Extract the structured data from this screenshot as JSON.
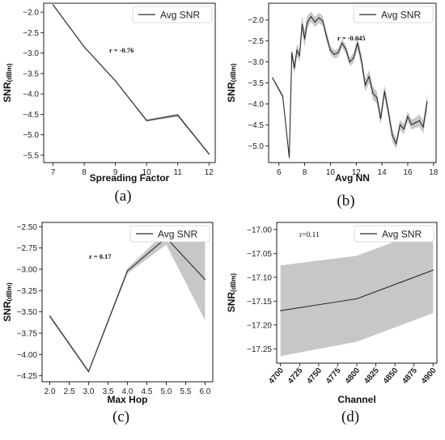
{
  "chart_data": [
    {
      "type": "line",
      "caption": "(a)",
      "xlabel": "Spreading Factor",
      "ylabel": "SNR",
      "ylabel_unit": "(dBm)",
      "legend": {
        "label": "Avg SNR",
        "placement": "top-right"
      },
      "annotation": "r = -0.76",
      "xlim": [
        6.7,
        12.2
      ],
      "ylim": [
        -5.68,
        -1.78
      ],
      "xticks": [
        7,
        8,
        9,
        10,
        11,
        12
      ],
      "yticks": [
        -2.0,
        -2.5,
        -3.0,
        -3.5,
        -4.0,
        -4.5,
        -5.0,
        -5.5
      ],
      "ytick_labels": [
        "−2.0",
        "−2.5",
        "−3.0",
        "−3.5",
        "−4.0",
        "−4.5",
        "−5.0",
        "−5.5"
      ],
      "x": [
        7,
        8,
        9,
        10,
        11,
        12
      ],
      "y": [
        -1.82,
        -2.85,
        -3.68,
        -4.65,
        -4.52,
        -5.47
      ],
      "band": [
        0.02,
        0.02,
        0.02,
        0.03,
        0.04,
        0.03
      ]
    },
    {
      "type": "line",
      "caption": "(b)",
      "xlabel": "Avg NN",
      "ylabel": "SNR",
      "ylabel_unit": "(dBm)",
      "legend": {
        "label": "Avg SNR",
        "placement": "top-right"
      },
      "annotation": "r = -0.045",
      "xlim": [
        5.2,
        18.2
      ],
      "ylim": [
        -5.4,
        -1.6
      ],
      "xticks": [
        6,
        8,
        10,
        12,
        14,
        16,
        18
      ],
      "yticks": [
        -2.0,
        -2.5,
        -3.0,
        -3.5,
        -4.0,
        -4.5,
        -5.0
      ],
      "ytick_labels": [
        "−2.0",
        "−2.5",
        "−3.0",
        "−3.5",
        "−4.0",
        "−4.5",
        "−5.0"
      ],
      "x": [
        5.5,
        6.3,
        6.8,
        7.0,
        7.2,
        7.4,
        7.6,
        7.8,
        8.0,
        8.2,
        8.5,
        8.8,
        9.1,
        9.4,
        9.7,
        10.0,
        10.3,
        10.6,
        10.9,
        11.2,
        11.5,
        11.8,
        12.1,
        12.4,
        12.7,
        13.0,
        13.3,
        13.6,
        13.9,
        14.2,
        14.5,
        14.8,
        15.1,
        15.4,
        15.7,
        16.0,
        16.3,
        16.6,
        16.9,
        17.2,
        17.5
      ],
      "y": [
        -3.38,
        -3.82,
        -5.28,
        -2.78,
        -3.15,
        -2.72,
        -2.85,
        -2.1,
        -2.45,
        -2.05,
        -1.92,
        -2.05,
        -1.95,
        -2.02,
        -2.4,
        -2.72,
        -2.82,
        -2.78,
        -2.55,
        -2.7,
        -3.0,
        -2.9,
        -2.55,
        -2.95,
        -3.55,
        -3.35,
        -3.75,
        -3.85,
        -4.35,
        -3.7,
        -4.2,
        -4.75,
        -4.95,
        -4.5,
        -4.6,
        -4.3,
        -4.5,
        -4.45,
        -4.4,
        -4.55,
        -3.95
      ],
      "band": [
        0.03,
        0.05,
        0.05,
        0.12,
        0.15,
        0.15,
        0.15,
        0.2,
        0.2,
        0.15,
        0.12,
        0.12,
        0.12,
        0.12,
        0.12,
        0.1,
        0.1,
        0.1,
        0.1,
        0.1,
        0.1,
        0.12,
        0.15,
        0.15,
        0.15,
        0.15,
        0.15,
        0.15,
        0.15,
        0.15,
        0.15,
        0.15,
        0.12,
        0.12,
        0.12,
        0.12,
        0.12,
        0.12,
        0.15,
        0.15,
        0.2
      ]
    },
    {
      "type": "line",
      "caption": "(c)",
      "xlabel": "Max Hop",
      "ylabel": "SNR",
      "ylabel_unit": "(dBm)",
      "legend": {
        "label": "Avg SNR",
        "placement": "top-right"
      },
      "annotation": "r = 0.17",
      "xlim": [
        1.8,
        6.2
      ],
      "ylim": [
        -4.32,
        -2.45
      ],
      "xticks": [
        2.0,
        2.5,
        3.0,
        3.5,
        4.0,
        4.5,
        5.0,
        5.5,
        6.0
      ],
      "xtick_labels": [
        "2.0",
        "2.5",
        "3.0",
        "3.5",
        "4.0",
        "4.5",
        "5.0",
        "5.5",
        "6.0"
      ],
      "yticks": [
        -2.5,
        -2.75,
        -3.0,
        -3.25,
        -3.5,
        -3.75,
        -4.0,
        -4.25
      ],
      "ytick_labels": [
        "−2.50",
        "−2.75",
        "−3.00",
        "−3.25",
        "−3.50",
        "−3.75",
        "−4.00",
        "−4.25"
      ],
      "x": [
        2,
        3,
        4,
        5,
        6
      ],
      "y": [
        -3.55,
        -4.2,
        -3.02,
        -2.63,
        -3.12
      ],
      "band": [
        0.02,
        0.02,
        0.03,
        0.08,
        0.48
      ]
    },
    {
      "type": "line",
      "caption": "(d)",
      "xlabel": "Channel",
      "ylabel": "SNR",
      "ylabel_unit": "(dBm)",
      "legend": {
        "label": "Avg SNR",
        "placement": "top-right"
      },
      "annotation": "r=0.11",
      "xlim": [
        4695,
        4905
      ],
      "ylim": [
        -17.28,
        -16.985
      ],
      "xticks": [
        4700,
        4725,
        4750,
        4775,
        4800,
        4825,
        4850,
        4875,
        4900
      ],
      "yticks": [
        -17.0,
        -17.05,
        -17.1,
        -17.15,
        -17.2,
        -17.25
      ],
      "ytick_labels": [
        "−17.00",
        "−17.05",
        "−17.10",
        "−17.15",
        "−17.20",
        "−17.25"
      ],
      "x": [
        4700,
        4800,
        4900
      ],
      "y": [
        -17.17,
        -17.145,
        -17.085
      ],
      "band": [
        0.095,
        0.09,
        0.09
      ]
    }
  ]
}
